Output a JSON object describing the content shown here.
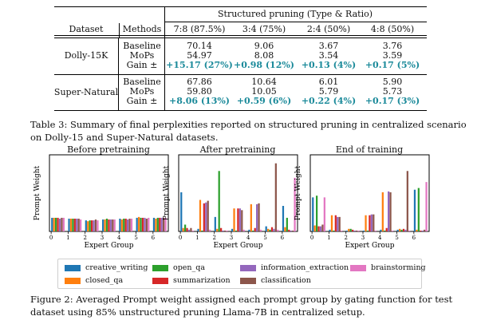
{
  "table": {
    "col_dataset": "Dataset",
    "col_methods": "Methods",
    "group_header": "Structured pruning (Type & Ratio)",
    "ratios": [
      "7:8 (87.5%)",
      "3:4 (75%)",
      "2:4 (50%)",
      "4:8 (50%)"
    ],
    "blocks": [
      {
        "dataset": "Dolly-15K",
        "methods": [
          "Baseline",
          "MoPs",
          "Gain ±"
        ],
        "rows": [
          [
            "70.14",
            "9.06",
            "3.67",
            "3.76"
          ],
          [
            "54.97",
            "8.08",
            "3.54",
            "3.59"
          ],
          [
            "+15.17 (27%)",
            "+0.98 (12%)",
            "+0.13 (4%)",
            "+0.17 (5%)"
          ]
        ]
      },
      {
        "dataset": "Super-Natural",
        "methods": [
          "Baseline",
          "MoPs",
          "Gain ±"
        ],
        "rows": [
          [
            "67.86",
            "10.64",
            "6.01",
            "5.90"
          ],
          [
            "59.80",
            "10.05",
            "5.79",
            "5.73"
          ],
          [
            "+8.06 (13%)",
            "+0.59 (6%)",
            "+0.22 (4%)",
            "+0.17 (3%)"
          ]
        ]
      }
    ]
  },
  "table_caption": {
    "line1": "Table 3: Summary of final perplexities reported on structured pruning in centralized scenario",
    "line2": "on Dolly-15 and Super-Natural datasets."
  },
  "figure_caption": {
    "line1": "Figure 2: Averaged Prompt weight assigned each prompt group by gating function for test",
    "line2": "dataset using 85% unstructured pruning Llama-7B in centralized setup."
  },
  "colors": {
    "creative_writing": "#1f77b4",
    "closed_qa": "#ff7f0e",
    "open_qa": "#2ca02c",
    "summarization": "#d62728",
    "information_extraction": "#9467bd",
    "classification": "#8c564b",
    "brainstorming": "#e377c2",
    "gain": "#1b8a9a"
  },
  "chart_data": [
    {
      "type": "bar",
      "title": "Before pretraining",
      "xlabel": "Expert Group",
      "ylabel": "Prompt Weight",
      "categories": [
        "0",
        "1",
        "2",
        "3",
        "4",
        "5",
        "6"
      ],
      "ylim": [
        0,
        0.9
      ],
      "grid": false,
      "series": [
        {
          "name": "creative_writing",
          "values": [
            0.16,
            0.15,
            0.13,
            0.14,
            0.15,
            0.16,
            0.16
          ]
        },
        {
          "name": "closed_qa",
          "values": [
            0.16,
            0.15,
            0.12,
            0.14,
            0.14,
            0.17,
            0.15
          ]
        },
        {
          "name": "open_qa",
          "values": [
            0.16,
            0.15,
            0.13,
            0.15,
            0.15,
            0.16,
            0.16
          ]
        },
        {
          "name": "summarization",
          "values": [
            0.16,
            0.15,
            0.13,
            0.14,
            0.15,
            0.16,
            0.16
          ]
        },
        {
          "name": "information_extraction",
          "values": [
            0.15,
            0.15,
            0.13,
            0.14,
            0.14,
            0.16,
            0.16
          ]
        },
        {
          "name": "classification",
          "values": [
            0.16,
            0.15,
            0.14,
            0.14,
            0.15,
            0.15,
            0.16
          ]
        },
        {
          "name": "brainstorming",
          "values": [
            0.16,
            0.14,
            0.13,
            0.14,
            0.15,
            0.16,
            0.16
          ]
        }
      ]
    },
    {
      "type": "bar",
      "title": "After pretraining",
      "xlabel": "Expert Group",
      "ylabel": "Prompt Weight",
      "categories": [
        "0",
        "1",
        "2",
        "3",
        "4",
        "5",
        "6"
      ],
      "ylim": [
        0,
        0.9
      ],
      "grid": false,
      "series": [
        {
          "name": "creative_writing",
          "values": [
            0.46,
            0.03,
            0.17,
            0.03,
            0.02,
            0.06,
            0.3
          ]
        },
        {
          "name": "closed_qa",
          "values": [
            0.04,
            0.37,
            0.03,
            0.27,
            0.32,
            0.03,
            0.05
          ]
        },
        {
          "name": "open_qa",
          "values": [
            0.08,
            0.01,
            0.71,
            0.01,
            0.01,
            0.02,
            0.16
          ]
        },
        {
          "name": "summarization",
          "values": [
            0.04,
            0.33,
            0.04,
            0.27,
            0.04,
            0.05,
            0.02
          ]
        },
        {
          "name": "information_extraction",
          "values": [
            0.02,
            0.34,
            0.01,
            0.27,
            0.32,
            0.03,
            0.01
          ]
        },
        {
          "name": "classification",
          "values": [
            0.04,
            0.36,
            0.01,
            0.25,
            0.33,
            0.8,
            0.01
          ]
        },
        {
          "name": "brainstorming",
          "values": [
            0.01,
            0.02,
            0.01,
            0.02,
            0.02,
            0.02,
            0.63
          ]
        }
      ]
    },
    {
      "type": "bar",
      "title": "End of training",
      "xlabel": "Expert Group",
      "ylabel": "Prompt Weight",
      "categories": [
        "0",
        "1",
        "2",
        "3",
        "4",
        "5",
        "6"
      ],
      "ylim": [
        0,
        0.9
      ],
      "grid": false,
      "series": [
        {
          "name": "creative_writing",
          "values": [
            0.4,
            0.02,
            0.01,
            0.01,
            0.02,
            0.02,
            0.49
          ]
        },
        {
          "name": "closed_qa",
          "values": [
            0.07,
            0.19,
            0.03,
            0.19,
            0.46,
            0.03,
            0.02
          ]
        },
        {
          "name": "open_qa",
          "values": [
            0.42,
            0.01,
            0.03,
            0.01,
            0.01,
            0.02,
            0.51
          ]
        },
        {
          "name": "summarization",
          "values": [
            0.06,
            0.19,
            0.02,
            0.19,
            0.04,
            0.03,
            0.01
          ]
        },
        {
          "name": "information_extraction",
          "values": [
            0.06,
            0.17,
            0.01,
            0.2,
            0.47,
            0.02,
            0.01
          ]
        },
        {
          "name": "classification",
          "values": [
            0.08,
            0.17,
            0.01,
            0.2,
            0.46,
            0.71,
            0.02
          ]
        },
        {
          "name": "brainstorming",
          "values": [
            0.4,
            0.01,
            0.01,
            0.01,
            0.01,
            0.01,
            0.58
          ]
        }
      ]
    }
  ],
  "legend": {
    "items": [
      {
        "label": "creative_writing",
        "color": "#1f77b4"
      },
      {
        "label": "open_qa",
        "color": "#2ca02c"
      },
      {
        "label": "information_extraction",
        "color": "#9467bd"
      },
      {
        "label": "brainstorming",
        "color": "#e377c2"
      },
      {
        "label": "closed_qa",
        "color": "#ff7f0e"
      },
      {
        "label": "summarization",
        "color": "#d62728"
      },
      {
        "label": "classification",
        "color": "#8c564b"
      }
    ]
  }
}
